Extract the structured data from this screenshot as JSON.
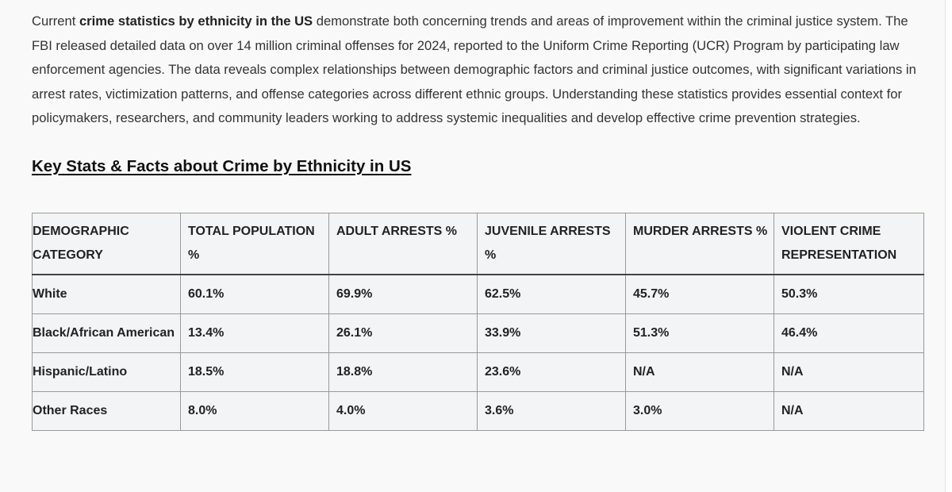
{
  "intro": {
    "prefix": "Current ",
    "bold": "crime statistics by ethnicity in the US",
    "suffix": " demonstrate both concerning trends and areas of improvement within the criminal justice system. The FBI released detailed data on over 14 million criminal offenses for 2024, reported to the Uniform Crime Reporting (UCR) Program by participating law enforcement agencies. The data reveals complex relationships between demographic factors and criminal justice outcomes, with significant variations in arrest rates, victimization patterns, and offense categories across different ethnic groups. Understanding these statistics provides essential context for policymakers, researchers, and community leaders working to address systemic inequalities and develop effective crime prevention strategies."
  },
  "heading": "Key Stats & Facts about Crime by Ethnicity in US",
  "table": {
    "headers": [
      "DEMOGRAPHIC CATEGORY",
      "TOTAL POPULATION %",
      "ADULT ARRESTS %",
      "JUVENILE ARRESTS %",
      "MURDER ARRESTS %",
      "VIOLENT CRIME REPRESENTATION"
    ],
    "rows": [
      [
        "White",
        "60.1%",
        "69.9%",
        "62.5%",
        "45.7%",
        "50.3%"
      ],
      [
        "Black/African American",
        "13.4%",
        "26.1%",
        "33.9%",
        "51.3%",
        "46.4%"
      ],
      [
        "Hispanic/Latino",
        "18.5%",
        "18.8%",
        "23.6%",
        "N/A",
        "N/A"
      ],
      [
        "Other Races",
        "8.0%",
        "4.0%",
        "3.6%",
        "3.0%",
        "N/A"
      ]
    ]
  }
}
